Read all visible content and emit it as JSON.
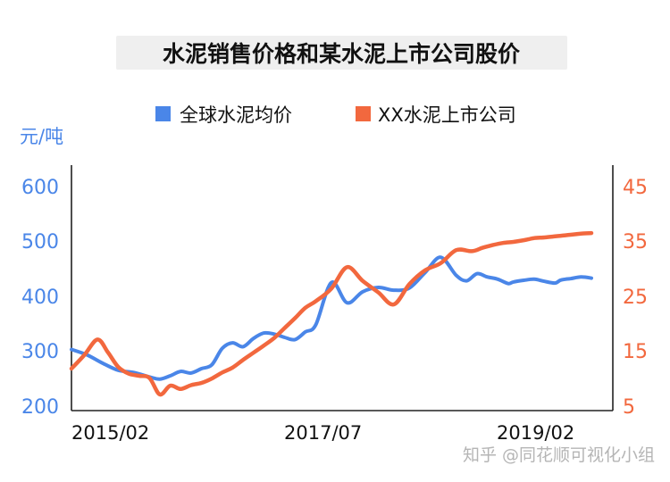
{
  "chart_data": {
    "type": "line",
    "title": "水泥销售价格和某水泥上市公司股价",
    "left_axis": {
      "unit_label": "元/吨",
      "ticks": [
        "600",
        "500",
        "400",
        "300",
        "200"
      ],
      "ylim": [
        200,
        600
      ],
      "color": "#4a86e8"
    },
    "right_axis": {
      "ticks": [
        "45",
        "35",
        "25",
        "15",
        "5"
      ],
      "ylim": [
        5,
        45
      ],
      "color": "#f2683e"
    },
    "x_ticks": [
      "2015/02",
      "2017/07",
      "2019/02"
    ],
    "legend": {
      "placement": "top-center"
    },
    "grid": false,
    "series": [
      {
        "name": "全球水泥均价",
        "axis": "left",
        "color": "#4a86e8",
        "x": [
          0,
          3,
          6,
          9,
          12,
          15,
          17,
          19,
          21,
          23,
          25,
          27,
          29,
          31,
          33,
          35,
          37,
          39,
          41,
          43,
          45,
          47,
          50,
          53,
          56,
          59,
          62,
          65,
          68,
          71,
          74,
          76,
          78,
          80,
          82,
          84,
          85,
          87,
          89,
          91,
          93,
          94,
          95,
          96,
          98,
          100
        ],
        "values": [
          300,
          290,
          275,
          262,
          258,
          250,
          246,
          252,
          260,
          257,
          265,
          272,
          302,
          312,
          305,
          320,
          330,
          328,
          322,
          318,
          332,
          345,
          422,
          385,
          405,
          413,
          408,
          412,
          440,
          468,
          435,
          425,
          438,
          432,
          428,
          420,
          423,
          426,
          428,
          424,
          421,
          426,
          428,
          429,
          432,
          430
        ]
      },
      {
        "name": "XX水泥上市公司",
        "axis": "right",
        "color": "#f2683e",
        "x": [
          0,
          2.5,
          5,
          7,
          9,
          11,
          13,
          15,
          17,
          19,
          21,
          23,
          25,
          27,
          29,
          31,
          33,
          35,
          37,
          39,
          41,
          43,
          45,
          47,
          50,
          53,
          56,
          59,
          62,
          65,
          68,
          71,
          74,
          77,
          79,
          81,
          83,
          85,
          87,
          88,
          89,
          91,
          93,
          94,
          95,
          96,
          97,
          98,
          100
        ],
        "values": [
          11.5,
          14,
          16.8,
          14.5,
          11.8,
          10.6,
          10.2,
          9.8,
          6.8,
          8.4,
          7.8,
          8.5,
          8.9,
          9.7,
          10.8,
          11.7,
          13.1,
          14.4,
          15.7,
          17.1,
          18.9,
          20.7,
          22.6,
          23.8,
          26.1,
          30.0,
          27.5,
          25.4,
          23.2,
          26.9,
          29.4,
          30.7,
          33.1,
          32.9,
          33.5,
          34.0,
          34.4,
          34.6,
          34.9,
          35.1,
          35.3,
          35.4,
          35.6,
          35.7,
          35.8,
          35.9,
          36.0,
          36.1,
          36.2
        ]
      }
    ]
  },
  "watermark": "知乎 @同花顺可视化小组"
}
